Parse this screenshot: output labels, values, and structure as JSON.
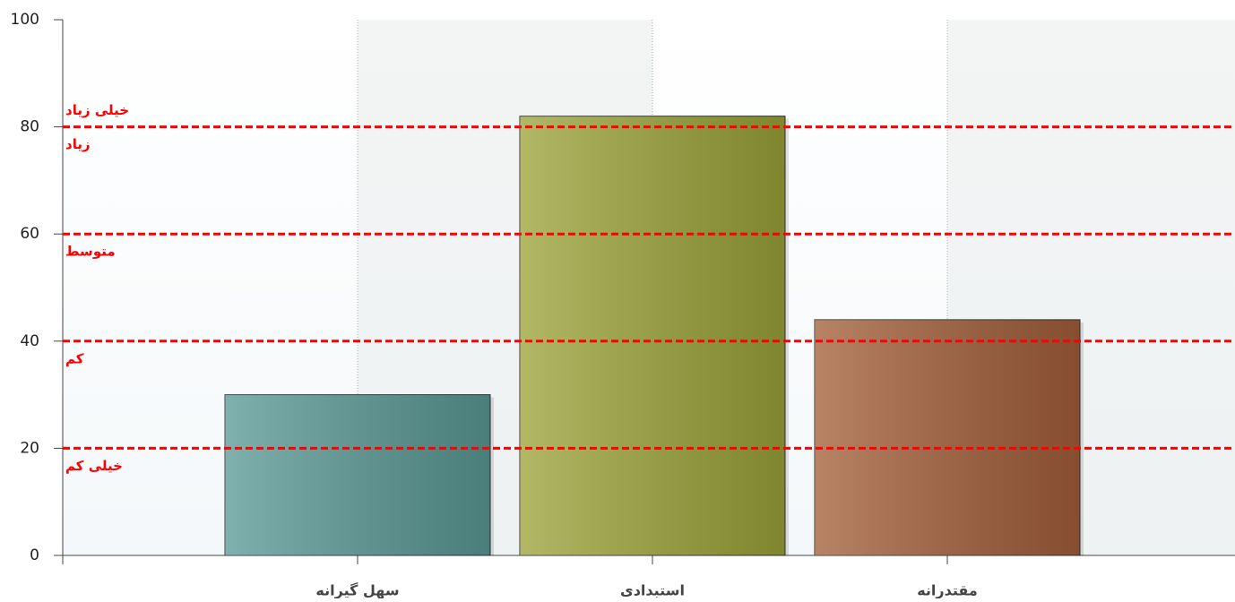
{
  "chart_data": {
    "type": "bar",
    "categories": [
      "سهل گیرانه",
      "استبدادی",
      "مقتدرانه"
    ],
    "values": [
      30,
      82,
      44
    ],
    "colors": [
      "#5a9a96",
      "#9ca43a",
      "#a45f3a"
    ],
    "ylim": [
      0,
      100
    ],
    "yticks": [
      0,
      20,
      40,
      60,
      80,
      100
    ],
    "reference_lines": {
      "values": [
        20,
        40,
        60,
        80
      ],
      "color": "#ff0000"
    },
    "annotations": [
      {
        "text": "خیلی زیاد",
        "y": 80,
        "position": "above"
      },
      {
        "text": "زیاد",
        "y": 80,
        "position": "below"
      },
      {
        "text": "متوسط",
        "y": 60,
        "position": "below"
      },
      {
        "text": "کم",
        "y": 40,
        "position": "below"
      },
      {
        "text": "خیلی کم",
        "y": 20,
        "position": "below"
      }
    ],
    "grid": true
  }
}
